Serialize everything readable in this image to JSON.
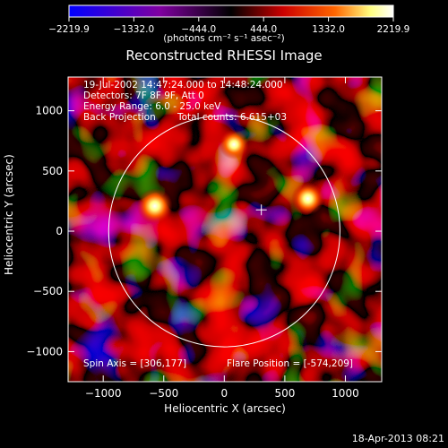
{
  "colorbar": {
    "ticks": [
      "-2219.9",
      "-1332.0",
      "-444.0",
      "444.0",
      "1332.0",
      "2219.9"
    ],
    "units_text": "(photons cm⁻² s⁻¹ asec⁻²)",
    "min": -2219.9,
    "max": 2219.9
  },
  "annotations": {
    "time_range": "19-Jul-2002 14:47:24.000 to 14:48:24.000",
    "detectors": "Detectors: 7F 8F 9F, Att 0",
    "energy": "Energy Range: 6.0 - 25.0 keV",
    "method": "Back Projection",
    "counts": "Total counts: 6.615+03",
    "spin_axis": "Spin Axis = [306,177]",
    "flare_position": "Flare Position = [-574,209]"
  },
  "footer": {
    "date": "18-Apr-2013 08:21"
  },
  "chart_data": {
    "type": "heatmap",
    "title": "Reconstructed RHESSI Image",
    "xlabel": "Heliocentric X (arcsec)",
    "ylabel": "Heliocentric Y (arcsec)",
    "xlim": [
      -1290,
      1300
    ],
    "ylim": [
      -1250,
      1280
    ],
    "xticks": [
      -1000,
      -500,
      0,
      500,
      1000
    ],
    "yticks": [
      -1000,
      -500,
      0,
      500,
      1000
    ],
    "xtick_labels": [
      "−1000",
      "−500",
      "0",
      "500",
      "1000"
    ],
    "ytick_labels": [
      "−1000",
      "−500",
      "0",
      "500",
      "1000"
    ],
    "colormap": [
      "#0000ff",
      "#800080",
      "#000000",
      "#cc0000",
      "#ff6600",
      "#ffff80",
      "#ffffff"
    ],
    "solar_limb_radius": 955,
    "spin_axis_marker": [
      306,
      177
    ],
    "bright_sources": [
      {
        "x": -574,
        "y": 209,
        "level": 2219.9
      },
      {
        "x": 690,
        "y": 270,
        "level": 1900
      },
      {
        "x": 80,
        "y": 720,
        "level": 1600
      }
    ]
  }
}
